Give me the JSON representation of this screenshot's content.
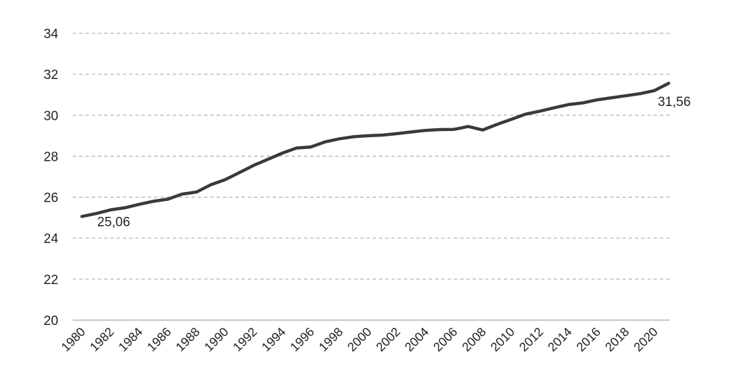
{
  "chart_data": {
    "type": "line",
    "title": "",
    "xlabel": "",
    "ylabel": "",
    "xlim": [
      1980,
      2021
    ],
    "ylim": [
      20,
      34
    ],
    "y_ticks": [
      "20",
      "22",
      "24",
      "26",
      "28",
      "30",
      "32",
      "34"
    ],
    "x_ticks": [
      "1980",
      "1982",
      "1984",
      "1986",
      "1988",
      "1990",
      "1992",
      "1994",
      "1996",
      "1998",
      "2000",
      "2002",
      "2004",
      "2006",
      "2008",
      "2010",
      "2012",
      "2014",
      "2016",
      "2018",
      "2020"
    ],
    "grid": "horizontal-dashed",
    "legend": "none",
    "colors": {
      "line": "#3a3a3a",
      "grid": "#b5b5b5",
      "axis": "#b5b5b5",
      "text": "#222222"
    },
    "series": [
      {
        "x": [
          1980,
          1981,
          1982,
          1983,
          1984,
          1985,
          1986,
          1987,
          1988,
          1989,
          1990,
          1991,
          1992,
          1993,
          1994,
          1995,
          1996,
          1997,
          1998,
          1999,
          2000,
          2001,
          2002,
          2003,
          2004,
          2005,
          2006,
          2007,
          2008,
          2009,
          2010,
          2011,
          2012,
          2013,
          2014,
          2015,
          2016,
          2017,
          2018,
          2019,
          2020,
          2021
        ],
        "values": [
          25.06,
          25.2,
          25.38,
          25.48,
          25.65,
          25.8,
          25.9,
          26.15,
          26.25,
          26.6,
          26.85,
          27.2,
          27.55,
          27.85,
          28.15,
          28.4,
          28.45,
          28.7,
          28.85,
          28.95,
          29.0,
          29.03,
          29.1,
          29.18,
          29.26,
          29.3,
          29.31,
          29.45,
          29.28,
          29.55,
          29.8,
          30.05,
          30.2,
          30.36,
          30.52,
          30.6,
          30.75,
          30.85,
          30.95,
          31.05,
          31.2,
          31.56
        ]
      }
    ],
    "annotations": [
      {
        "text": "25,06",
        "x": 1980,
        "y": 25.06,
        "anchor": "below-right"
      },
      {
        "text": "31,56",
        "x": 2021,
        "y": 31.56,
        "anchor": "below"
      }
    ]
  }
}
